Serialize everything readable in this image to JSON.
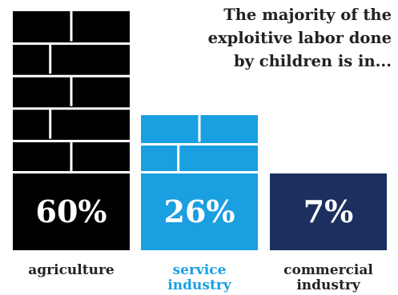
{
  "chart_data": {
    "type": "bar",
    "title_lines": [
      "The majority of the",
      "exploitive labor done",
      "by children is in..."
    ],
    "categories": [
      "agriculture",
      "service\nindustry",
      "commercial\nindustry"
    ],
    "values": [
      60,
      26,
      7
    ],
    "value_labels": [
      "60%",
      "26%",
      "7%"
    ],
    "colors": [
      "#000000",
      "#1a9fe0",
      "#1d2f5e"
    ],
    "label_colors": [
      "#222222",
      "#1a9fe0",
      "#222222"
    ],
    "unit": "%",
    "grid": false,
    "legend": "none"
  }
}
